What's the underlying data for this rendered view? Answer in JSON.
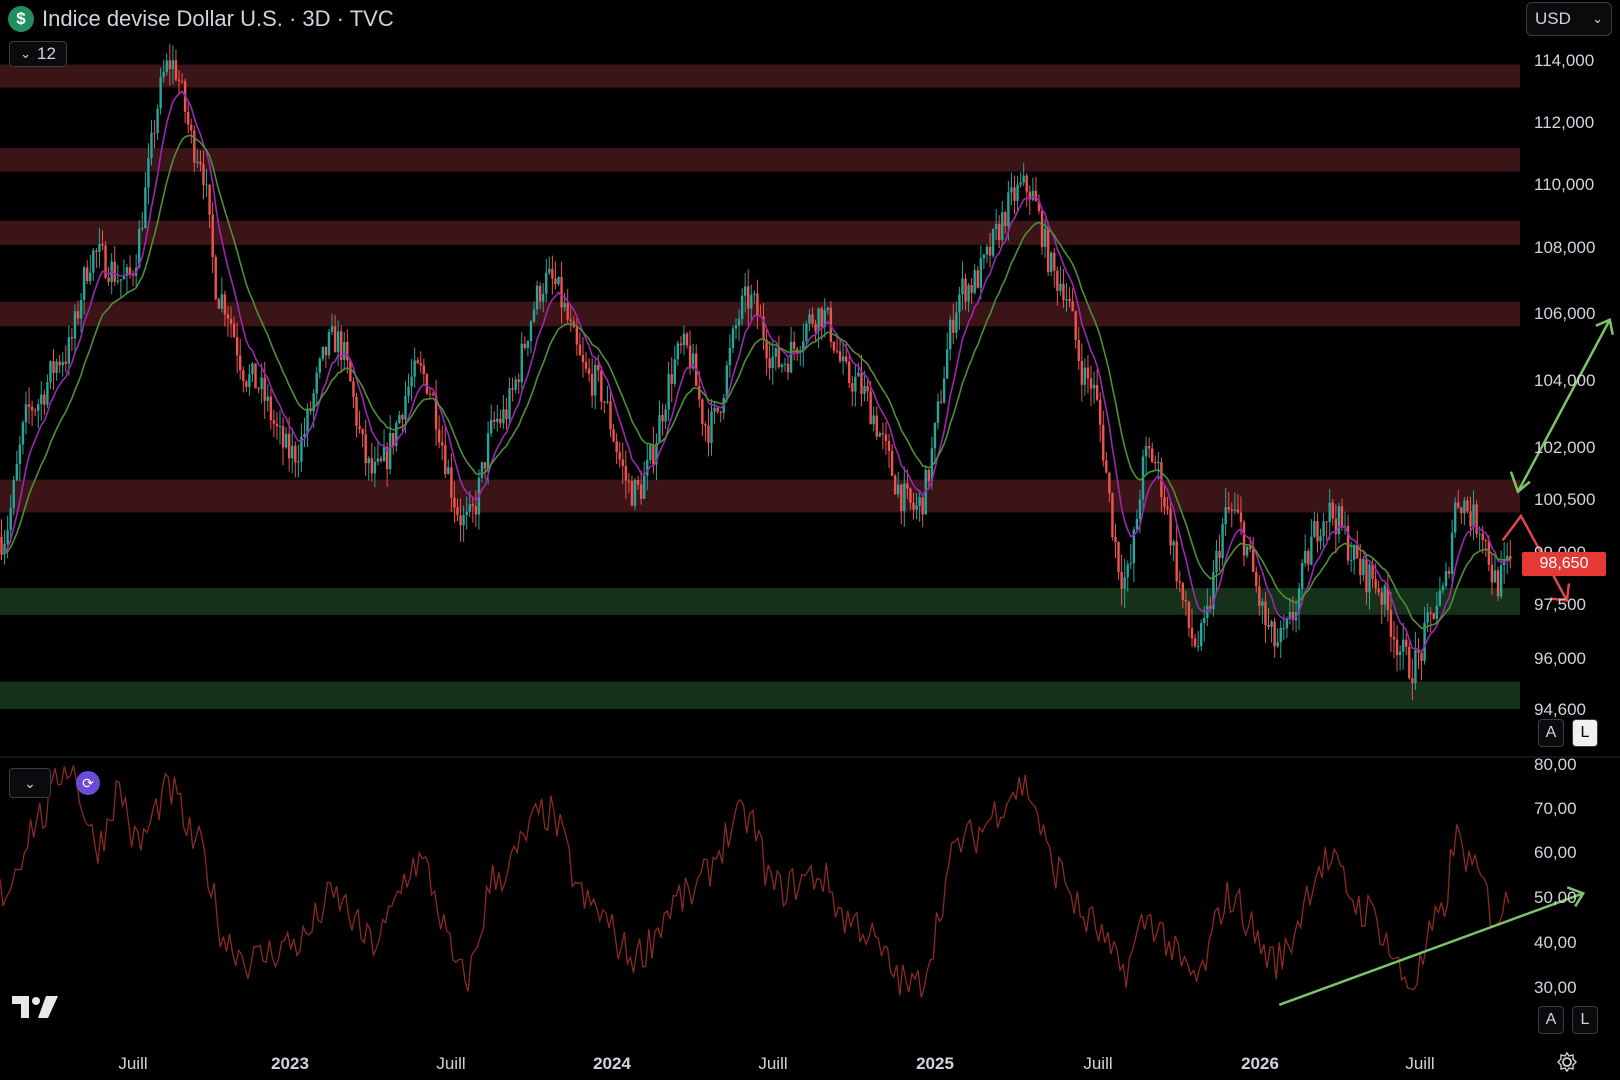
{
  "header": {
    "logo_icon": "dollar-sign-icon",
    "title": "Indice devise Dollar U.S. · 3D · TVC"
  },
  "toolbar": {
    "interval_count": "12",
    "currency": "USD"
  },
  "price_tag": "98,650",
  "axis_buttons": {
    "auto": "A",
    "log": "L"
  },
  "colors": {
    "up": "#26a69a",
    "down": "#ef5350",
    "ma_fast": "#9c27b0",
    "ma_slow": "#4e8f3a",
    "resistance_zone": "#3a1416",
    "support_zone": "#16311a",
    "rsi": "#8b2a22",
    "arrow_up": "#7cc36a",
    "arrow_down": "#e04848"
  },
  "chart_data": [
    {
      "type": "candlestick",
      "y_ticks": [
        "114,000",
        "112,000",
        "110,000",
        "108,000",
        "106,000",
        "104,000",
        "102,000",
        "100,500",
        "99,000",
        "97,500",
        "96,000",
        "94,600"
      ],
      "x_ticks": [
        "Juill",
        "2023",
        "Juill",
        "2024",
        "Juill",
        "2025",
        "Juill",
        "2026",
        "Juill"
      ],
      "ylim": [
        94.6,
        114.0
      ],
      "last_price": 98.65,
      "trend_path": [
        [
          "2022-04-15",
          99.4
        ],
        [
          "2022-05-15",
          103.2
        ],
        [
          "2022-06-15",
          104.7
        ],
        [
          "2022-07-15",
          107.8
        ],
        [
          "2022-08-15",
          107.0
        ],
        [
          "2022-09-28",
          113.9
        ],
        [
          "2022-10-25",
          111.0
        ],
        [
          "2022-11-15",
          106.5
        ],
        [
          "2022-12-15",
          104.0
        ],
        [
          "2023-01-25",
          101.8
        ],
        [
          "2023-03-08",
          105.2
        ],
        [
          "2023-04-15",
          101.2
        ],
        [
          "2023-05-30",
          104.2
        ],
        [
          "2023-07-15",
          99.8
        ],
        [
          "2023-08-15",
          102.8
        ],
        [
          "2023-10-03",
          107.0
        ],
        [
          "2023-11-15",
          104.0
        ],
        [
          "2023-12-27",
          100.7
        ],
        [
          "2024-02-14",
          104.9
        ],
        [
          "2024-03-08",
          102.6
        ],
        [
          "2024-04-16",
          106.4
        ],
        [
          "2024-05-15",
          104.5
        ],
        [
          "2024-06-26",
          106.0
        ],
        [
          "2024-07-25",
          104.0
        ],
        [
          "2024-09-27",
          100.2
        ],
        [
          "2024-11-15",
          106.8
        ],
        [
          "2025-01-13",
          109.9
        ],
        [
          "2025-02-15",
          107.0
        ],
        [
          "2025-03-15",
          104.0
        ],
        [
          "2025-04-21",
          98.2
        ],
        [
          "2025-05-13",
          101.8
        ],
        [
          "2025-07-01",
          96.4
        ],
        [
          "2025-08-01",
          100.1
        ],
        [
          "2025-09-17",
          96.4
        ],
        [
          "2025-11-05",
          100.1
        ],
        [
          "2025-12-15",
          98.3
        ],
        [
          "2026-01-27",
          95.8
        ],
        [
          "2026-02-25",
          97.7
        ],
        [
          "2026-03-13",
          100.5
        ],
        [
          "2026-04-02",
          99.8
        ],
        [
          "2026-04-20",
          98.1
        ],
        [
          "2026-05-05",
          98.65
        ]
      ],
      "zones": [
        {
          "kind": "resistance",
          "from": 113.1,
          "to": 113.85
        },
        {
          "kind": "resistance",
          "from": 110.4,
          "to": 111.15
        },
        {
          "kind": "resistance",
          "from": 108.1,
          "to": 108.85
        },
        {
          "kind": "resistance",
          "from": 105.6,
          "to": 106.35
        },
        {
          "kind": "resistance",
          "from": 100.1,
          "to": 101.05
        },
        {
          "kind": "support",
          "from": 97.2,
          "to": 97.95
        },
        {
          "kind": "support",
          "from": 94.6,
          "to": 95.35
        }
      ],
      "annotations": [
        {
          "kind": "arrow-up",
          "from": [
            "2026-05-12",
            100.7
          ],
          "to": [
            "2026-08-10",
            105.8
          ]
        },
        {
          "kind": "arrow-down",
          "from": [
            "2026-04-27",
            99.3
          ],
          "via": [
            "2026-05-15",
            100.0
          ],
          "to": [
            "2026-06-29",
            97.6
          ]
        }
      ]
    },
    {
      "type": "line",
      "y_ticks": [
        "80,00",
        "70,00",
        "60,00",
        "50,00",
        "40,00",
        "30,00"
      ],
      "ylim": [
        27,
        81
      ],
      "trend_path": [
        [
          "2022-04-15",
          51
        ],
        [
          "2022-05-25",
          68
        ],
        [
          "2022-06-20",
          80
        ],
        [
          "2022-07-20",
          62
        ],
        [
          "2022-08-10",
          74
        ],
        [
          "2022-08-27",
          62
        ],
        [
          "2022-09-28",
          74
        ],
        [
          "2022-10-25",
          62
        ],
        [
          "2022-11-25",
          40
        ],
        [
          "2022-12-15",
          36
        ],
        [
          "2023-02-01",
          40
        ],
        [
          "2023-03-08",
          50
        ],
        [
          "2023-04-15",
          40
        ],
        [
          "2023-05-30",
          58
        ],
        [
          "2023-07-15",
          32
        ],
        [
          "2023-08-15",
          55
        ],
        [
          "2023-10-03",
          69
        ],
        [
          "2023-11-15",
          48
        ],
        [
          "2023-12-27",
          37
        ],
        [
          "2024-02-14",
          50
        ],
        [
          "2024-04-16",
          68
        ],
        [
          "2024-05-15",
          52
        ],
        [
          "2024-06-26",
          55
        ],
        [
          "2024-07-25",
          45
        ],
        [
          "2024-09-27",
          30
        ],
        [
          "2024-11-15",
          63
        ],
        [
          "2025-01-13",
          75
        ],
        [
          "2025-02-15",
          56
        ],
        [
          "2025-03-15",
          45
        ],
        [
          "2025-04-21",
          34
        ],
        [
          "2025-05-13",
          45
        ],
        [
          "2025-07-01",
          32
        ],
        [
          "2025-08-01",
          50
        ],
        [
          "2025-09-17",
          36
        ],
        [
          "2025-11-05",
          58
        ],
        [
          "2025-12-15",
          47
        ],
        [
          "2026-01-27",
          31
        ],
        [
          "2026-02-25",
          45
        ],
        [
          "2026-03-13",
          63
        ],
        [
          "2026-04-02",
          55
        ],
        [
          "2026-04-20",
          46
        ],
        [
          "2026-05-05",
          49
        ]
      ],
      "annotations": [
        {
          "kind": "trendline",
          "from": [
            "2025-09-20",
            26
          ],
          "to": [
            "2026-07-15",
            51
          ]
        }
      ]
    }
  ]
}
